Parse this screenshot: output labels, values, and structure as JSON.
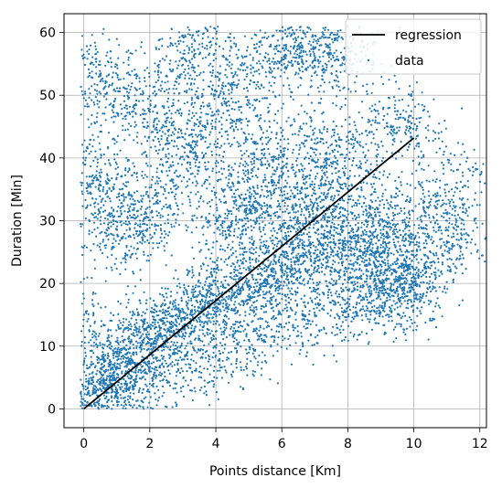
{
  "chart_data": {
    "type": "scatter",
    "xlabel": "Points distance [Km]",
    "ylabel": "Duration [Min]",
    "xlim": [
      -0.6,
      12.2
    ],
    "ylim": [
      -3,
      63
    ],
    "xticks": [
      0,
      2,
      4,
      6,
      8,
      10,
      12
    ],
    "yticks": [
      0,
      10,
      20,
      30,
      40,
      50,
      60
    ],
    "grid": true,
    "legend_position": "top-right",
    "series": [
      {
        "name": "regression",
        "kind": "line",
        "color": "#000000",
        "x": [
          0,
          10
        ],
        "y": [
          0,
          43.2
        ]
      },
      {
        "name": "data",
        "kind": "scatter",
        "color": "#1f77b4",
        "points": [
          [
            0.1,
            1.0
          ],
          [
            0.3,
            2.5
          ],
          [
            0.5,
            3.8
          ],
          [
            0.8,
            5.0
          ],
          [
            1.0,
            6.5
          ],
          [
            1.2,
            8.0
          ],
          [
            1.5,
            9.0
          ],
          [
            1.8,
            10.5
          ],
          [
            2.0,
            11.0
          ],
          [
            2.3,
            12.5
          ],
          [
            2.6,
            13.0
          ],
          [
            3.0,
            14.5
          ],
          [
            3.3,
            15.0
          ],
          [
            3.6,
            16.0
          ],
          [
            4.0,
            17.5
          ],
          [
            4.4,
            18.0
          ],
          [
            4.8,
            19.5
          ],
          [
            5.2,
            20.0
          ],
          [
            5.6,
            21.0
          ],
          [
            6.0,
            22.5
          ],
          [
            6.5,
            23.0
          ],
          [
            7.0,
            24.0
          ],
          [
            7.5,
            25.0
          ],
          [
            8.0,
            26.5
          ],
          [
            8.5,
            27.0
          ],
          [
            9.0,
            28.0
          ],
          [
            9.5,
            24.0
          ],
          [
            10.0,
            21.0
          ],
          [
            0.5,
            30.0
          ],
          [
            0.9,
            35.0
          ],
          [
            1.3,
            26.0
          ],
          [
            1.7,
            30.0
          ],
          [
            2.2,
            33.0
          ],
          [
            2.8,
            38.0
          ],
          [
            3.2,
            42.0
          ],
          [
            3.9,
            45.0
          ],
          [
            4.5,
            36.0
          ],
          [
            5.0,
            33.0
          ],
          [
            5.5,
            40.0
          ],
          [
            6.2,
            37.0
          ],
          [
            6.8,
            34.0
          ],
          [
            7.4,
            32.0
          ],
          [
            8.2,
            22.0
          ],
          [
            8.8,
            19.0
          ],
          [
            9.3,
            16.0
          ],
          [
            10.0,
            19.0
          ],
          [
            11.0,
            30.0
          ],
          [
            11.3,
            27.0
          ],
          [
            11.7,
            38.0
          ],
          [
            0.2,
            55.0
          ],
          [
            0.6,
            51.0
          ],
          [
            2.0,
            51.5
          ],
          [
            3.3,
            59.5
          ],
          [
            3.3,
            54.5
          ],
          [
            4.9,
            54.0
          ],
          [
            5.9,
            57.0
          ],
          [
            6.3,
            55.5
          ],
          [
            6.6,
            58.0
          ],
          [
            7.3,
            57.0
          ],
          [
            7.6,
            59.0
          ],
          [
            8.0,
            54.5
          ],
          [
            9.2,
            47.0
          ],
          [
            9.9,
            44.0
          ],
          [
            10.5,
            33.0
          ],
          [
            10.6,
            23.5
          ],
          [
            0.0,
            15.0
          ],
          [
            0.0,
            41.0
          ],
          [
            0.1,
            36.0
          ],
          [
            1.0,
            2.0
          ],
          [
            2.0,
            4.0
          ],
          [
            3.0,
            6.0
          ],
          [
            4.0,
            8.5
          ],
          [
            5.0,
            11.0
          ],
          [
            6.0,
            13.0
          ],
          [
            7.0,
            15.0
          ],
          [
            8.0,
            17.0
          ],
          [
            9.0,
            20.0
          ],
          [
            9.7,
            22.0
          ],
          [
            4.2,
            28.0
          ],
          [
            4.8,
            30.0
          ],
          [
            5.6,
            31.0
          ],
          [
            6.4,
            27.0
          ],
          [
            7.2,
            29.0
          ],
          [
            2.5,
            45.0
          ],
          [
            1.4,
            47.0
          ],
          [
            4.1,
            50.0
          ],
          [
            5.3,
            46.0
          ],
          [
            6.9,
            43.0
          ],
          [
            7.7,
            41.0
          ],
          [
            8.4,
            36.0
          ],
          [
            9.1,
            30.0
          ]
        ]
      }
    ]
  }
}
